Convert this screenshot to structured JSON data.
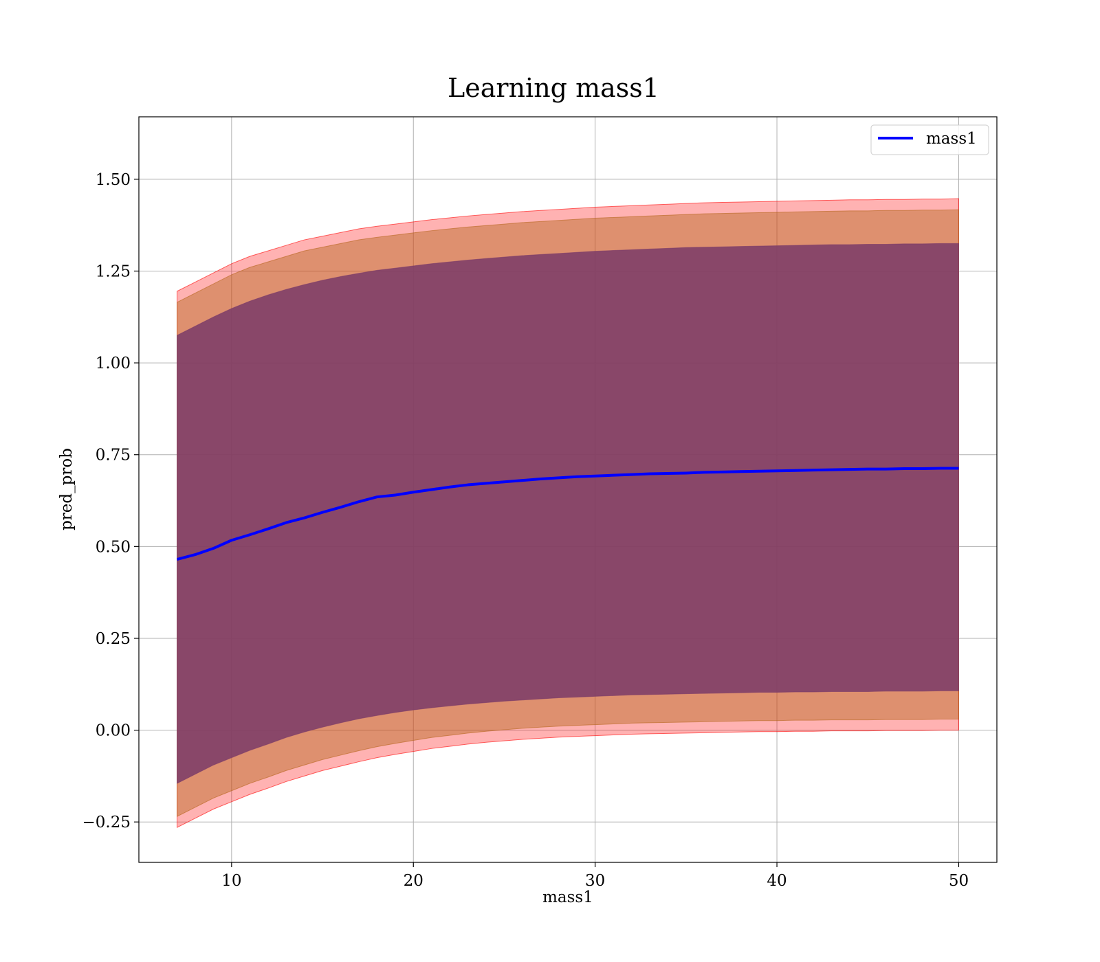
{
  "chart_data": {
    "type": "line",
    "title": "Learning mass1",
    "xlabel": "mass1",
    "ylabel": "pred_prob",
    "xlim": [
      4.9,
      52.1
    ],
    "ylim": [
      -0.36,
      1.67
    ],
    "x_ticks": [
      10,
      20,
      30,
      40,
      50
    ],
    "x_tick_labels": [
      "10",
      "20",
      "30",
      "40",
      "50"
    ],
    "y_ticks": [
      -0.25,
      0.0,
      0.25,
      0.5,
      0.75,
      1.0,
      1.25,
      1.5
    ],
    "y_tick_labels": [
      "−0.25",
      "0.00",
      "0.25",
      "0.50",
      "0.75",
      "1.00",
      "1.25",
      "1.50"
    ],
    "grid": true,
    "legend": {
      "position": "top-right",
      "entries": [
        "mass1"
      ]
    },
    "colors": {
      "line": "#0000ff",
      "band_outer": "#ff0000",
      "band_middle": "#b5651d",
      "band_inner": "#7a3b69"
    },
    "x": [
      7,
      8,
      9,
      10,
      11,
      12,
      13,
      14,
      15,
      16,
      17,
      18,
      19,
      20,
      21,
      22,
      23,
      24,
      25,
      26,
      27,
      28,
      29,
      30,
      31,
      32,
      33,
      34,
      35,
      36,
      37,
      38,
      39,
      40,
      41,
      42,
      43,
      44,
      45,
      46,
      47,
      48,
      49,
      50
    ],
    "series": [
      {
        "name": "mass1",
        "values": [
          0.465,
          0.478,
          0.495,
          0.517,
          0.532,
          0.548,
          0.565,
          0.578,
          0.593,
          0.607,
          0.622,
          0.635,
          0.64,
          0.648,
          0.655,
          0.662,
          0.668,
          0.672,
          0.676,
          0.68,
          0.684,
          0.687,
          0.69,
          0.692,
          0.694,
          0.696,
          0.698,
          0.699,
          0.7,
          0.702,
          0.703,
          0.704,
          0.705,
          0.706,
          0.707,
          0.708,
          0.709,
          0.71,
          0.711,
          0.711,
          0.712,
          0.712,
          0.713,
          0.713
        ]
      }
    ],
    "bands": [
      {
        "level": "outer",
        "upper": [
          1.195,
          1.22,
          1.245,
          1.27,
          1.29,
          1.305,
          1.32,
          1.335,
          1.345,
          1.355,
          1.365,
          1.372,
          1.378,
          1.384,
          1.39,
          1.395,
          1.4,
          1.404,
          1.408,
          1.412,
          1.415,
          1.418,
          1.421,
          1.424,
          1.426,
          1.428,
          1.43,
          1.432,
          1.434,
          1.436,
          1.437,
          1.438,
          1.439,
          1.44,
          1.441,
          1.442,
          1.443,
          1.444,
          1.444,
          1.445,
          1.445,
          1.446,
          1.446,
          1.447
        ],
        "lower": [
          -0.265,
          -0.24,
          -0.215,
          -0.195,
          -0.175,
          -0.158,
          -0.14,
          -0.125,
          -0.11,
          -0.098,
          -0.086,
          -0.075,
          -0.066,
          -0.058,
          -0.05,
          -0.044,
          -0.038,
          -0.033,
          -0.029,
          -0.025,
          -0.022,
          -0.019,
          -0.017,
          -0.015,
          -0.013,
          -0.011,
          -0.01,
          -0.009,
          -0.008,
          -0.007,
          -0.006,
          -0.005,
          -0.004,
          -0.004,
          -0.003,
          -0.003,
          -0.002,
          -0.002,
          -0.002,
          -0.001,
          -0.001,
          -0.001,
          0.0,
          0.0
        ]
      },
      {
        "level": "middle",
        "upper": [
          1.165,
          1.19,
          1.215,
          1.24,
          1.26,
          1.275,
          1.29,
          1.305,
          1.315,
          1.325,
          1.335,
          1.342,
          1.348,
          1.354,
          1.36,
          1.365,
          1.37,
          1.374,
          1.378,
          1.382,
          1.385,
          1.388,
          1.391,
          1.394,
          1.396,
          1.398,
          1.4,
          1.402,
          1.404,
          1.406,
          1.407,
          1.408,
          1.409,
          1.41,
          1.411,
          1.412,
          1.413,
          1.414,
          1.414,
          1.415,
          1.415,
          1.416,
          1.416,
          1.417
        ],
        "lower": [
          -0.235,
          -0.21,
          -0.185,
          -0.165,
          -0.145,
          -0.128,
          -0.11,
          -0.095,
          -0.08,
          -0.068,
          -0.056,
          -0.045,
          -0.036,
          -0.028,
          -0.02,
          -0.014,
          -0.008,
          -0.003,
          0.001,
          0.005,
          0.008,
          0.011,
          0.013,
          0.015,
          0.017,
          0.019,
          0.02,
          0.021,
          0.022,
          0.023,
          0.024,
          0.025,
          0.026,
          0.026,
          0.027,
          0.027,
          0.028,
          0.028,
          0.028,
          0.029,
          0.029,
          0.029,
          0.03,
          0.03
        ]
      },
      {
        "level": "inner",
        "upper": [
          1.075,
          1.1,
          1.125,
          1.148,
          1.168,
          1.185,
          1.2,
          1.213,
          1.225,
          1.235,
          1.244,
          1.252,
          1.258,
          1.264,
          1.27,
          1.275,
          1.28,
          1.284,
          1.288,
          1.292,
          1.295,
          1.298,
          1.301,
          1.304,
          1.306,
          1.308,
          1.31,
          1.312,
          1.314,
          1.315,
          1.316,
          1.317,
          1.318,
          1.319,
          1.32,
          1.321,
          1.322,
          1.322,
          1.323,
          1.323,
          1.324,
          1.324,
          1.325,
          1.325
        ],
        "lower": [
          -0.145,
          -0.12,
          -0.095,
          -0.075,
          -0.055,
          -0.038,
          -0.02,
          -0.005,
          0.008,
          0.02,
          0.031,
          0.04,
          0.048,
          0.055,
          0.061,
          0.066,
          0.071,
          0.075,
          0.079,
          0.082,
          0.085,
          0.088,
          0.09,
          0.092,
          0.094,
          0.096,
          0.097,
          0.098,
          0.099,
          0.1,
          0.101,
          0.102,
          0.103,
          0.103,
          0.104,
          0.104,
          0.105,
          0.105,
          0.105,
          0.106,
          0.106,
          0.106,
          0.107,
          0.107
        ]
      }
    ]
  }
}
